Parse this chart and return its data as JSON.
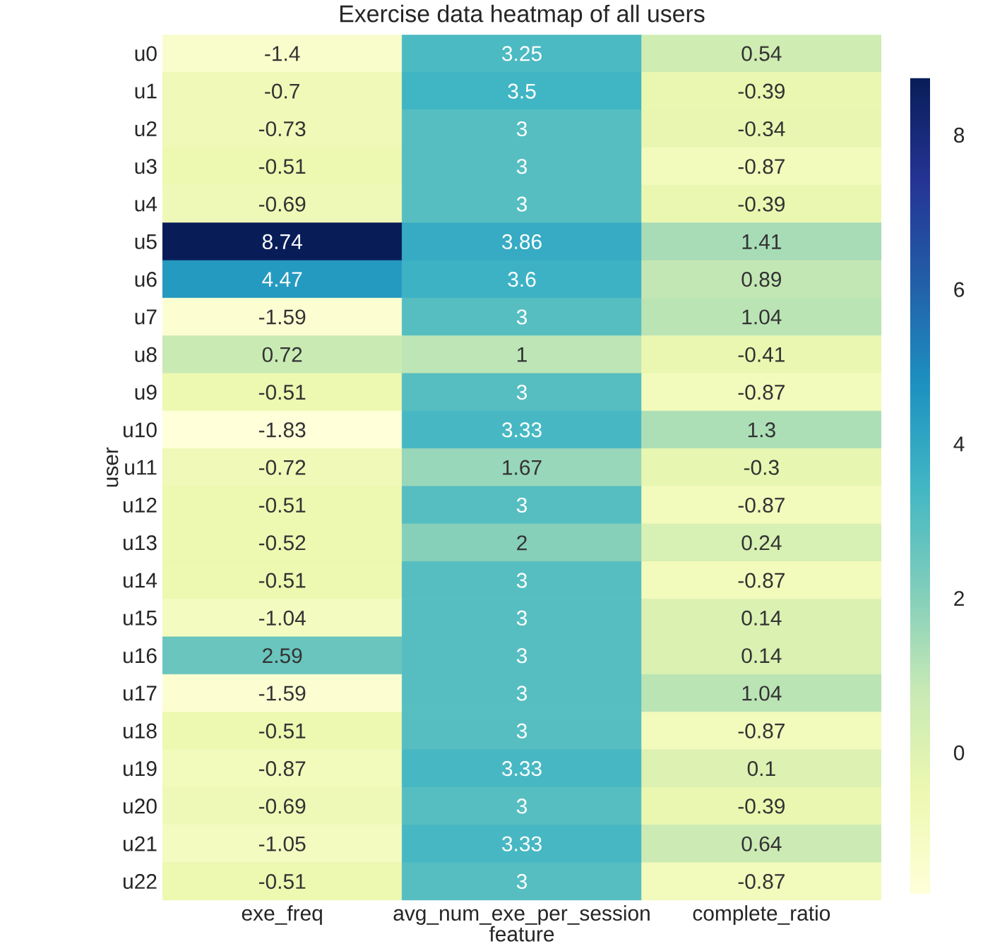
{
  "chart_data": {
    "type": "heatmap",
    "title": "Exercise data heatmap of all users",
    "xlabel": "feature",
    "ylabel": "user",
    "categories": [
      "exe_freq",
      "avg_num_exe_per_session",
      "complete_ratio"
    ],
    "y_categories": [
      "u0",
      "u1",
      "u2",
      "u3",
      "u4",
      "u5",
      "u6",
      "u7",
      "u8",
      "u9",
      "u10",
      "u11",
      "u12",
      "u13",
      "u14",
      "u15",
      "u16",
      "u17",
      "u18",
      "u19",
      "u20",
      "u21",
      "u22"
    ],
    "cells": [
      [
        -1.4,
        3.25,
        0.54
      ],
      [
        -0.7,
        3.5,
        -0.39
      ],
      [
        -0.73,
        3,
        -0.34
      ],
      [
        -0.51,
        3,
        -0.87
      ],
      [
        -0.69,
        3,
        -0.39
      ],
      [
        8.74,
        3.86,
        1.41
      ],
      [
        4.47,
        3.6,
        0.89
      ],
      [
        -1.59,
        3,
        1.04
      ],
      [
        0.72,
        1,
        -0.41
      ],
      [
        -0.51,
        3,
        -0.87
      ],
      [
        -1.83,
        3.33,
        1.3
      ],
      [
        -0.72,
        1.67,
        -0.3
      ],
      [
        -0.51,
        3,
        -0.87
      ],
      [
        -0.52,
        2,
        0.24
      ],
      [
        -0.51,
        3,
        -0.87
      ],
      [
        -1.04,
        3,
        0.14
      ],
      [
        2.59,
        3,
        0.14
      ],
      [
        -1.59,
        3,
        1.04
      ],
      [
        -0.51,
        3,
        -0.87
      ],
      [
        -0.87,
        3.33,
        0.1
      ],
      [
        -0.69,
        3,
        -0.39
      ],
      [
        -1.05,
        3.33,
        0.64
      ],
      [
        -0.51,
        3,
        -0.87
      ]
    ],
    "clim": [
      -1.83,
      8.74
    ],
    "cticks": [
      0,
      2,
      4,
      6,
      8
    ],
    "data_labels": true
  }
}
